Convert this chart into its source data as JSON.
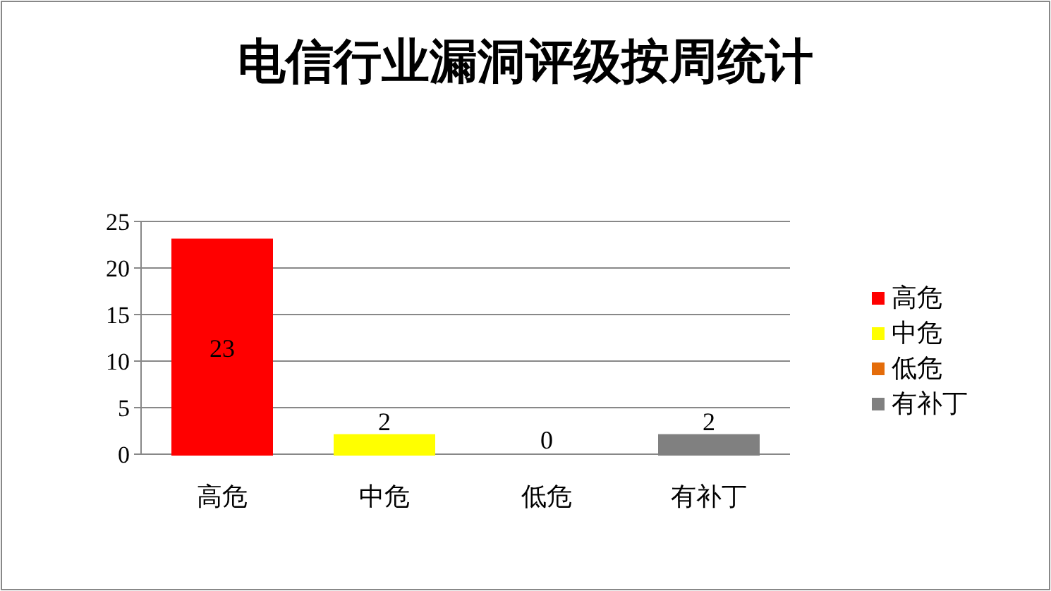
{
  "chart_data": {
    "type": "bar",
    "title": "电信行业漏洞评级按周统计",
    "categories": [
      "高危",
      "中危",
      "低危",
      "有补丁"
    ],
    "stacked": true,
    "series": [
      {
        "name": "高危",
        "color": "#ff0000",
        "values": [
          23,
          null,
          null,
          null
        ]
      },
      {
        "name": "中危",
        "color": "#ffff00",
        "values": [
          null,
          2,
          null,
          null
        ]
      },
      {
        "name": "低危",
        "color": "#e46c0a",
        "values": [
          null,
          null,
          0,
          null
        ]
      },
      {
        "name": "有补丁",
        "color": "#808080",
        "values": [
          null,
          null,
          null,
          2
        ]
      }
    ],
    "ylim": [
      0,
      25
    ],
    "yticks": [
      0,
      5,
      10,
      15,
      20,
      25
    ],
    "grid": "y",
    "data_labels": true,
    "legend": "right"
  }
}
